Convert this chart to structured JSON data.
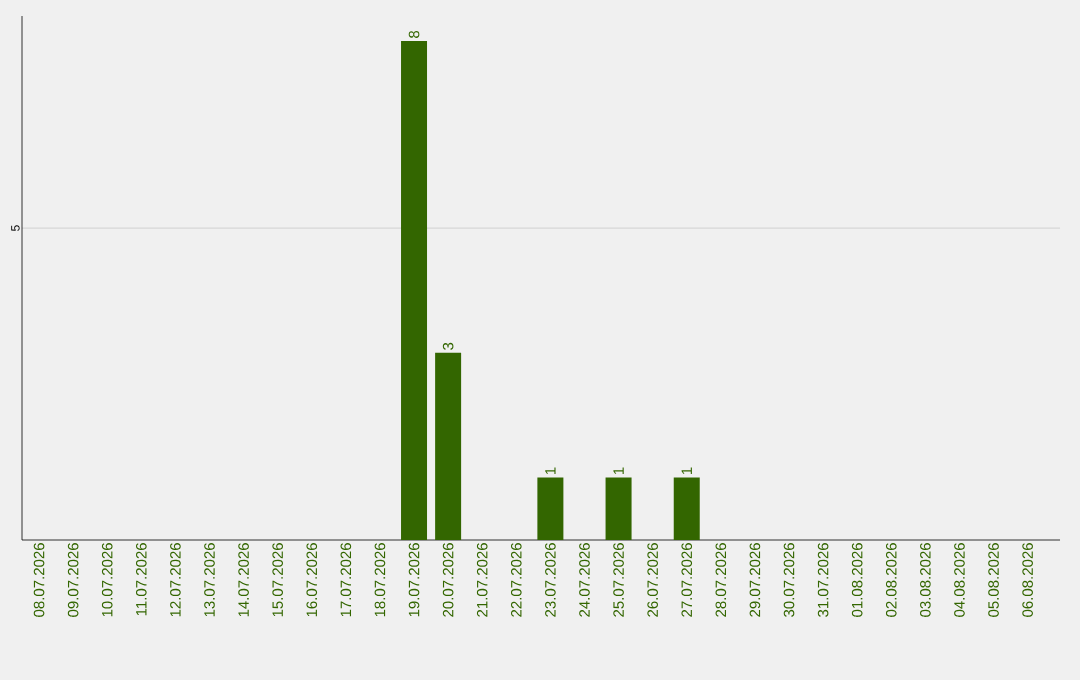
{
  "chart_data": {
    "type": "bar",
    "categories": [
      "08.07.2026",
      "09.07.2026",
      "10.07.2026",
      "11.07.2026",
      "12.07.2026",
      "13.07.2026",
      "14.07.2026",
      "15.07.2026",
      "16.07.2026",
      "17.07.2026",
      "18.07.2026",
      "19.07.2026",
      "20.07.2026",
      "21.07.2026",
      "22.07.2026",
      "23.07.2026",
      "24.07.2026",
      "25.07.2026",
      "26.07.2026",
      "27.07.2026",
      "28.07.2026",
      "29.07.2026",
      "30.07.2026",
      "31.07.2026",
      "01.08.2026",
      "02.08.2026",
      "03.08.2026",
      "04.08.2026",
      "05.08.2026",
      "06.08.2026"
    ],
    "values": [
      0,
      0,
      0,
      0,
      0,
      0,
      0,
      0,
      0,
      0,
      0,
      8,
      3,
      0,
      0,
      1,
      0,
      1,
      0,
      1,
      0,
      0,
      0,
      0,
      0,
      0,
      0,
      0,
      0,
      0
    ],
    "value_labels": [
      null,
      null,
      null,
      null,
      null,
      null,
      null,
      null,
      null,
      null,
      null,
      "8",
      "3",
      null,
      null,
      "1",
      null,
      "1",
      null,
      "1",
      null,
      null,
      null,
      null,
      null,
      null,
      null,
      null,
      null,
      null
    ],
    "color": "#336600",
    "ylim": [
      0,
      8.4
    ],
    "yticks": [
      5
    ],
    "grid": "y"
  }
}
